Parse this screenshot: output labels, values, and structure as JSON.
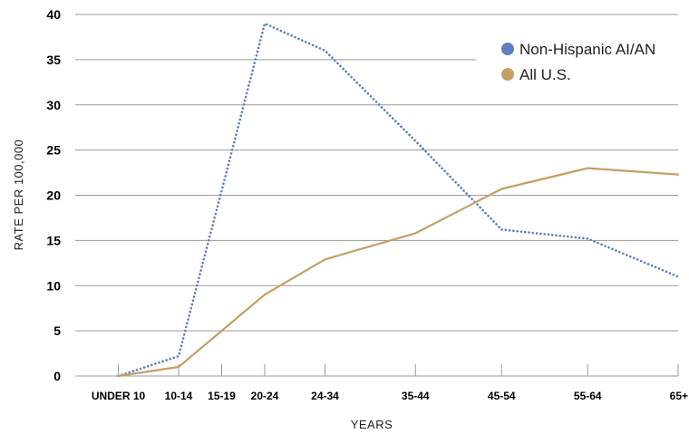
{
  "chart_data": {
    "type": "line",
    "title": "",
    "xlabel": "YEARS",
    "ylabel": "RATE PER 100,000",
    "categories": [
      "UNDER 10",
      "10-14",
      "15-19",
      "20-24",
      "24-34",
      "35-44",
      "45-54",
      "55-64",
      "65+"
    ],
    "x_positions": [
      5,
      12,
      17,
      22,
      29,
      39.5,
      49.5,
      59.5,
      70
    ],
    "ylim": [
      0,
      40
    ],
    "yticks": [
      0,
      5,
      10,
      15,
      20,
      25,
      30,
      35,
      40
    ],
    "grid": true,
    "legend_position": "top-right",
    "series": [
      {
        "name": "Non-Hispanic AI/AN",
        "color": "#5b7fc0",
        "style": "dotted",
        "values": [
          0,
          2.2,
          20.5,
          39,
          36,
          26,
          16.2,
          15.2,
          11
        ]
      },
      {
        "name": "All U.S.",
        "color": "#c4a064",
        "style": "solid",
        "values": [
          0,
          1,
          5,
          9,
          12.9,
          15.8,
          20.7,
          23,
          22.3
        ]
      }
    ]
  }
}
